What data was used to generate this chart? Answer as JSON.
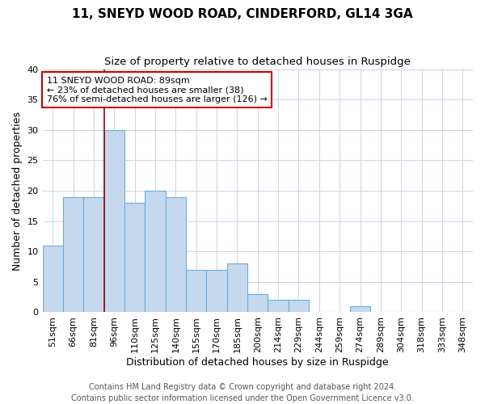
{
  "title1": "11, SNEYD WOOD ROAD, CINDERFORD, GL14 3GA",
  "title2": "Size of property relative to detached houses in Ruspidge",
  "xlabel": "Distribution of detached houses by size in Ruspidge",
  "ylabel": "Number of detached properties",
  "bar_values": [
    11,
    19,
    19,
    30,
    18,
    20,
    19,
    7,
    7,
    8,
    3,
    2,
    2,
    0,
    0,
    1,
    0,
    0,
    0,
    0,
    0
  ],
  "bar_labels": [
    "51sqm",
    "66sqm",
    "81sqm",
    "96sqm",
    "110sqm",
    "125sqm",
    "140sqm",
    "155sqm",
    "170sqm",
    "185sqm",
    "200sqm",
    "214sqm",
    "229sqm",
    "244sqm",
    "259sqm",
    "274sqm",
    "289sqm",
    "304sqm",
    "318sqm",
    "333sqm",
    "348sqm"
  ],
  "bar_color": "#c5d8ee",
  "bar_edgecolor": "#6aaed6",
  "background_color": "#ffffff",
  "grid_color": "#c8d4e8",
  "red_line_x": 2.53,
  "red_line_color": "#990000",
  "annotation_line1": "11 SNEYD WOOD ROAD: 89sqm",
  "annotation_line2": "← 23% of detached houses are smaller (38)",
  "annotation_line3": "76% of semi-detached houses are larger (126) →",
  "annotation_box_color": "#ffffff",
  "annotation_box_edgecolor": "#cc0000",
  "ylim": [
    0,
    40
  ],
  "yticks": [
    0,
    5,
    10,
    15,
    20,
    25,
    30,
    35,
    40
  ],
  "footer1": "Contains HM Land Registry data © Crown copyright and database right 2024.",
  "footer2": "Contains public sector information licensed under the Open Government Licence v3.0.",
  "title_fontsize": 11,
  "subtitle_fontsize": 9.5,
  "axis_label_fontsize": 9,
  "tick_fontsize": 8,
  "annotation_fontsize": 8,
  "footer_fontsize": 7
}
